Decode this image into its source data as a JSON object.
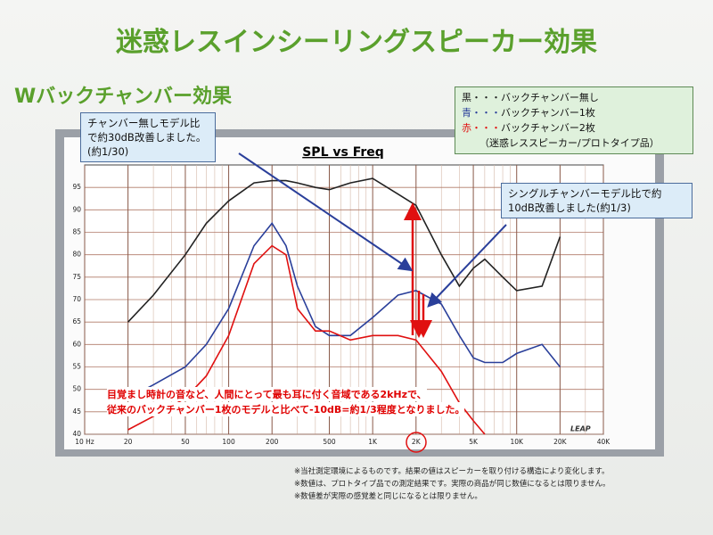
{
  "slide": {
    "title": "迷惑レスインシーリングスピーカー効果",
    "subtitle": "Wバックチャンバー効果",
    "footnotes": [
      "※当社測定環境によるものです。結果の値はスピーカーを取り付ける構造により変化します。",
      "※数値は、プロトタイプ品での測定結果です。実際の商品が同じ数値になるとは限りません。",
      "※数値差が実際の感覚差と同じになるとは限りません。"
    ]
  },
  "chart_data": {
    "type": "line",
    "title": "SPL vs Freq",
    "xscale": "log",
    "grid": true,
    "logo": "LEAP",
    "x": [
      20,
      30,
      50,
      70,
      100,
      150,
      200,
      250,
      300,
      400,
      500,
      700,
      1000,
      1500,
      2000,
      3000,
      4000,
      5000,
      6000,
      8000,
      10000,
      15000,
      20000
    ],
    "series": [
      {
        "name": "黒・・・バックチャンバー無し",
        "color": "#222222",
        "values": [
          65,
          71,
          80,
          87,
          92,
          96,
          96.5,
          96.5,
          96,
          95,
          94.5,
          96,
          97,
          93.5,
          91,
          80,
          73,
          77,
          79,
          75,
          72,
          73,
          84
        ]
      },
      {
        "name": "青・・・バックチャンバー1枚",
        "color": "#2a3f9a",
        "values": [
          48,
          51,
          55,
          60,
          68,
          82,
          87,
          82,
          73,
          64,
          62,
          62,
          66,
          71,
          72,
          69,
          62,
          57,
          56,
          56,
          58,
          60,
          55
        ]
      },
      {
        "name": "赤・・・バックチャンバー2枚",
        "color": "#e01010",
        "values": [
          41,
          44,
          48,
          53,
          62,
          78,
          82,
          80,
          68,
          63,
          63,
          61,
          62,
          62,
          61,
          54,
          47,
          43,
          40,
          null,
          null,
          null,
          null
        ]
      }
    ],
    "legend_note": "（迷惑レススピーカー/プロトタイプ品）",
    "xlim": [
      10,
      40000
    ],
    "xticks": [
      {
        "value": 10,
        "label": "10 Hz"
      },
      20,
      50,
      100,
      200,
      500,
      {
        "value": 1000,
        "label": "1K"
      },
      {
        "value": 2000,
        "label": "2K"
      },
      {
        "value": 5000,
        "label": "5K"
      },
      {
        "value": 10000,
        "label": "10K"
      },
      {
        "value": 20000,
        "label": "20K"
      },
      {
        "value": 40000,
        "label": "40K"
      }
    ],
    "ylim": [
      40,
      100
    ],
    "yticks": [
      40,
      45,
      50,
      55,
      60,
      65,
      70,
      75,
      80,
      85,
      90,
      95
    ],
    "annotations": [
      "チャンバー無しモデル比で約30dB改善しました。(約1/30)",
      "シングルチャンバーモデル比で約10dB改善しました(約1/3)",
      "目覚まし時計の音など、人間にとって最も耳に付く音域である2kHzで、",
      "従来のバックチャンバー1枚のモデルと比べて-10dB=約1/3程度となりました。"
    ]
  }
}
